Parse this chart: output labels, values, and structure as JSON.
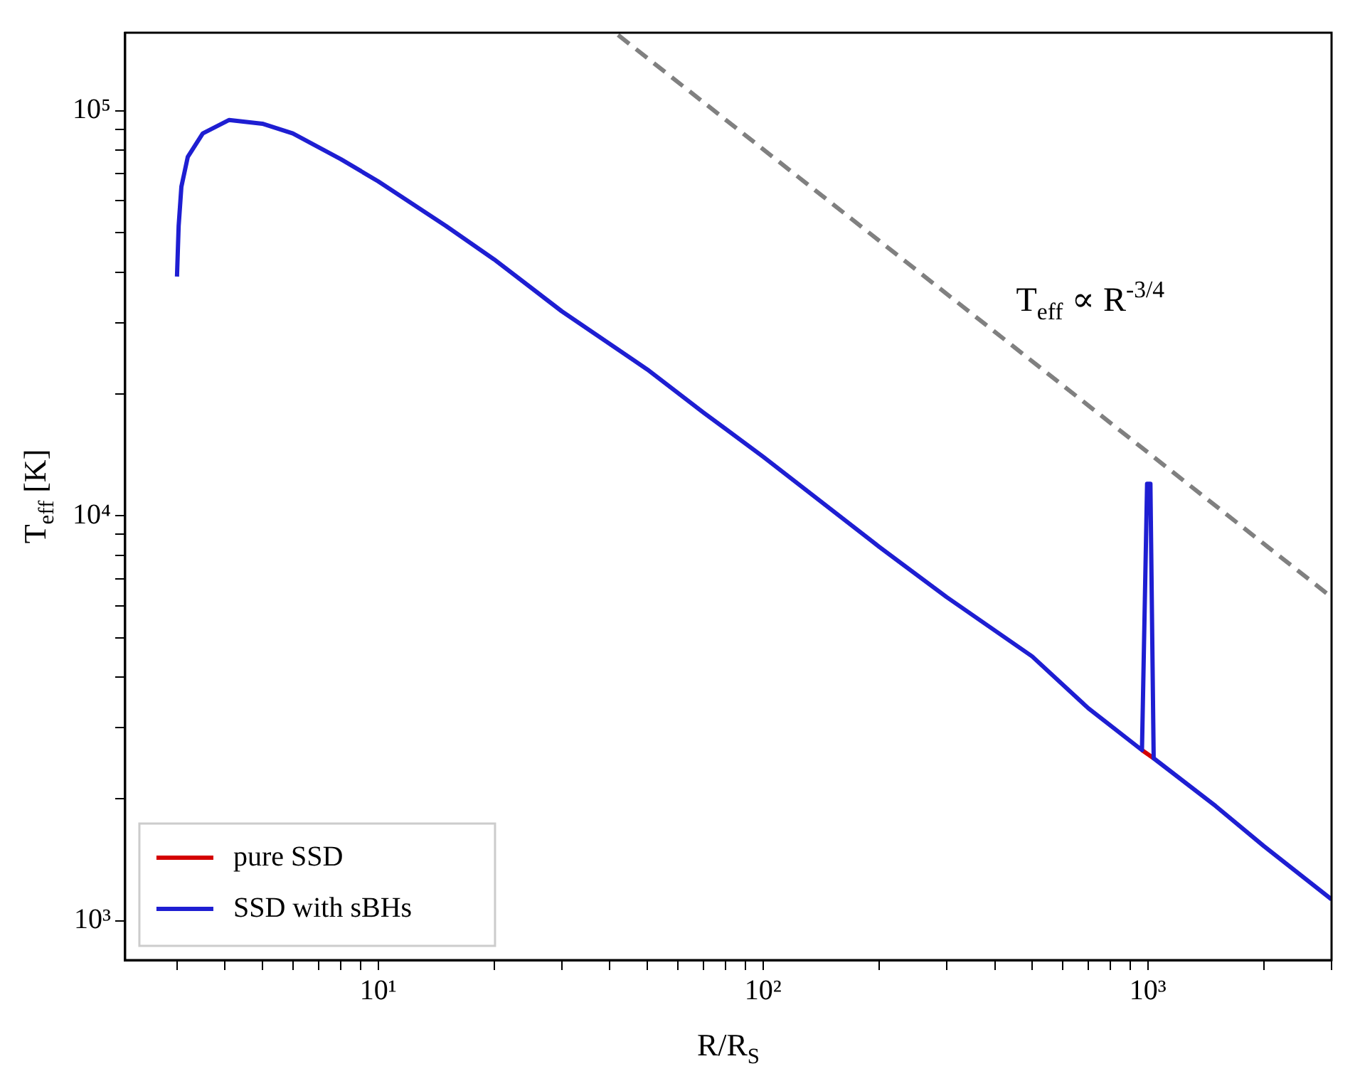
{
  "chart_data": {
    "type": "line",
    "xlabel": "R/R$_{S}$",
    "ylabel": "T$_{eff}$ [K]",
    "log": "xy",
    "xlim": [
      2.2,
      3000
    ],
    "ylim": [
      800,
      156000
    ],
    "xticks": [
      {
        "value": 3,
        "label": null
      },
      {
        "value": 4,
        "label": null
      },
      {
        "value": 5,
        "label": null
      },
      {
        "value": 6,
        "label": null
      },
      {
        "value": 7,
        "label": null
      },
      {
        "value": 8,
        "label": null
      },
      {
        "value": 9,
        "label": null
      },
      {
        "value": 10,
        "label": "10¹"
      },
      {
        "value": 20,
        "label": null
      },
      {
        "value": 30,
        "label": null
      },
      {
        "value": 40,
        "label": null
      },
      {
        "value": 50,
        "label": null
      },
      {
        "value": 60,
        "label": null
      },
      {
        "value": 70,
        "label": null
      },
      {
        "value": 80,
        "label": null
      },
      {
        "value": 90,
        "label": null
      },
      {
        "value": 100,
        "label": "10²"
      },
      {
        "value": 200,
        "label": null
      },
      {
        "value": 300,
        "label": null
      },
      {
        "value": 400,
        "label": null
      },
      {
        "value": 500,
        "label": null
      },
      {
        "value": 600,
        "label": null
      },
      {
        "value": 700,
        "label": null
      },
      {
        "value": 800,
        "label": null
      },
      {
        "value": 900,
        "label": null
      },
      {
        "value": 1000,
        "label": "10³"
      },
      {
        "value": 2000,
        "label": null
      },
      {
        "value": 3000,
        "label": null
      }
    ],
    "yticks": [
      {
        "value": 1000,
        "label": "10³"
      },
      {
        "value": 2000,
        "label": null
      },
      {
        "value": 3000,
        "label": null
      },
      {
        "value": 4000,
        "label": null
      },
      {
        "value": 5000,
        "label": null
      },
      {
        "value": 6000,
        "label": null
      },
      {
        "value": 7000,
        "label": null
      },
      {
        "value": 8000,
        "label": null
      },
      {
        "value": 9000,
        "label": null
      },
      {
        "value": 10000,
        "label": "10⁴"
      },
      {
        "value": 20000,
        "label": null
      },
      {
        "value": 30000,
        "label": null
      },
      {
        "value": 40000,
        "label": null
      },
      {
        "value": 50000,
        "label": null
      },
      {
        "value": 60000,
        "label": null
      },
      {
        "value": 70000,
        "label": null
      },
      {
        "value": 80000,
        "label": null
      },
      {
        "value": 90000,
        "label": null
      },
      {
        "value": 100000,
        "label": "10⁵"
      }
    ],
    "grid": false,
    "legend": "bottom left",
    "marker": "none",
    "series": [
      {
        "name": "pure SSD",
        "color": "#d40000",
        "x": [
          965,
          1035
        ],
        "values": [
          2640,
          2520
        ]
      },
      {
        "name": "SSD with sBHs",
        "color": "#1e1ed2",
        "x": [
          3.0,
          3.03,
          3.08,
          3.2,
          3.5,
          4.1,
          5,
          6,
          8,
          10,
          15,
          20,
          30,
          50,
          70,
          100,
          200,
          300,
          500,
          700,
          965,
          995,
          1015,
          1035,
          1500,
          2000,
          3000
        ],
        "values": [
          39000,
          52000,
          65000,
          77000,
          88000,
          95000,
          93000,
          88000,
          76000,
          67000,
          52000,
          43000,
          32000,
          23000,
          18000,
          14000,
          8400,
          6300,
          4500,
          3350,
          2640,
          12000,
          12000,
          2520,
          1920,
          1530,
          1130
        ]
      },
      {
        "color": "#808080",
        "line_style": "dashed",
        "x": [
          42,
          3000
        ],
        "values": [
          154000,
          6300
        ]
      }
    ],
    "annotations": [
      "T$_{eff}$ ∝ R$^{-3/4}$"
    ]
  }
}
